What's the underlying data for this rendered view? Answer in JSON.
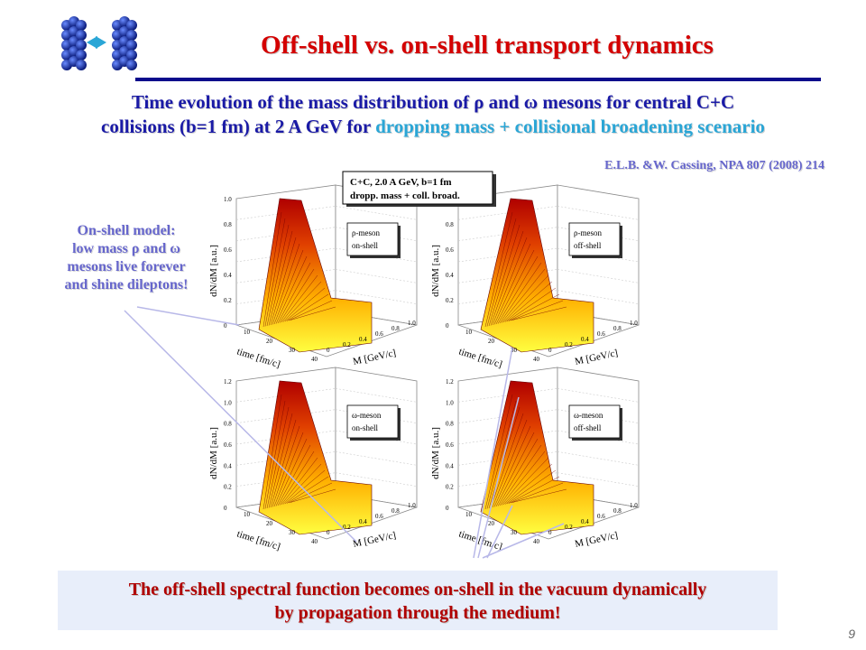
{
  "header": {
    "title": "Off-shell vs. on-shell transport dynamics",
    "subtitle_line1": "Time evolution of the mass distribution of ρ and ω mesons for central C+C",
    "subtitle_line2_a": "collisions (b=1 fm) at 2 A GeV for ",
    "subtitle_line2_b": "dropping mass + collisional broadening scenario",
    "reference": "E.L.B. &W. Cassing, NPA 807 (2008) 214"
  },
  "note": {
    "line1": "On-shell model:",
    "line2": "low mass ρ and ω",
    "line3": "mesons live  forever",
    "line4": "and shine dileptons!"
  },
  "figure": {
    "caption_line1": "C+C,   2.0 A GeV,   b=1 fm",
    "caption_line2": "dropp. mass + coll. broad.",
    "ylabel": "dN/dM [a.u.]",
    "xlabel": "M [GeV/c]",
    "tlabel": "time [fm/c]",
    "panels": [
      {
        "label1": "ρ-meson",
        "label2": "on-shell",
        "yticks": [
          "0",
          "0.2",
          "0.4",
          "0.6",
          "0.8",
          "1.0"
        ]
      },
      {
        "label1": "ρ-meson",
        "label2": "off-shell",
        "yticks": [
          "0",
          "0.2",
          "0.4",
          "0.6",
          "0.8",
          "1.0"
        ]
      },
      {
        "label1": "ω-meson",
        "label2": "on-shell",
        "yticks": [
          "0",
          "0.2",
          "0.4",
          "0.6",
          "0.8",
          "1.0",
          "1.2"
        ]
      },
      {
        "label1": "ω-meson",
        "label2": "off-shell",
        "yticks": [
          "0",
          "0.2",
          "0.4",
          "0.6",
          "0.8",
          "1.0",
          "1.2"
        ]
      }
    ],
    "mticks": [
      "0",
      "0.2",
      "0.4",
      "0.6",
      "0.8",
      "1.0"
    ],
    "tticks": [
      "10",
      "20",
      "30",
      "40"
    ]
  },
  "bottom": {
    "line1": "The off-shell spectral function becomes on-shell in the vacuum dynamically",
    "line2": "by propagation through the medium!"
  },
  "page_number": "9",
  "colors": {
    "title": "#d40000",
    "subtitle": "#1a1aa6",
    "highlight": "#2aa6d6",
    "note": "#6666cc",
    "bottom_text": "#b00000",
    "rule": "#0a0a8c"
  }
}
